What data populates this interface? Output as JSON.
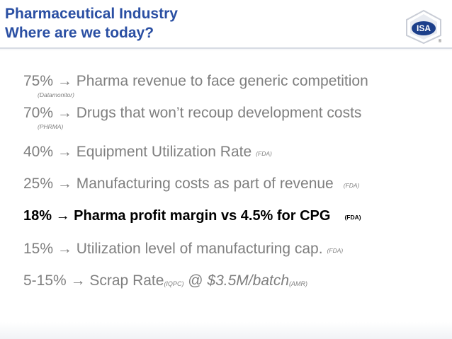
{
  "header": {
    "title_line1": "Pharmaceutical Industry",
    "title_line2": "Where are we today?",
    "logo_text": "ISA",
    "logo_reg": "®"
  },
  "colors": {
    "title": "#2a4fa3",
    "text": "#7f7f7f",
    "bold_text": "#000000",
    "logo": "#1c3f8a"
  },
  "items": [
    {
      "text": "75% → Pharma revenue to face generic competition",
      "source": "(Datamonitor)"
    },
    {
      "text": "70% → Drugs that won’t recoup development costs",
      "source": "(PHRMA)"
    },
    {
      "text": "40% → Equipment Utilization Rate",
      "source": "(FDA)"
    },
    {
      "text": "25% → Manufacturing costs as part of revenue",
      "source": "(FDA)"
    },
    {
      "text": "18% → Pharma profit margin vs 4.5% for CPG",
      "source": "(FDA)"
    },
    {
      "text": "15% → Utilization level of manufacturing cap.",
      "source": "(FDA)"
    },
    {
      "text_a": "5-15% → Scrap Rate",
      "source_a": "(IQPC)",
      "text_b": " @ ",
      "text_c": "$3.5M/batch",
      "source_b": "(AMR)"
    }
  ]
}
